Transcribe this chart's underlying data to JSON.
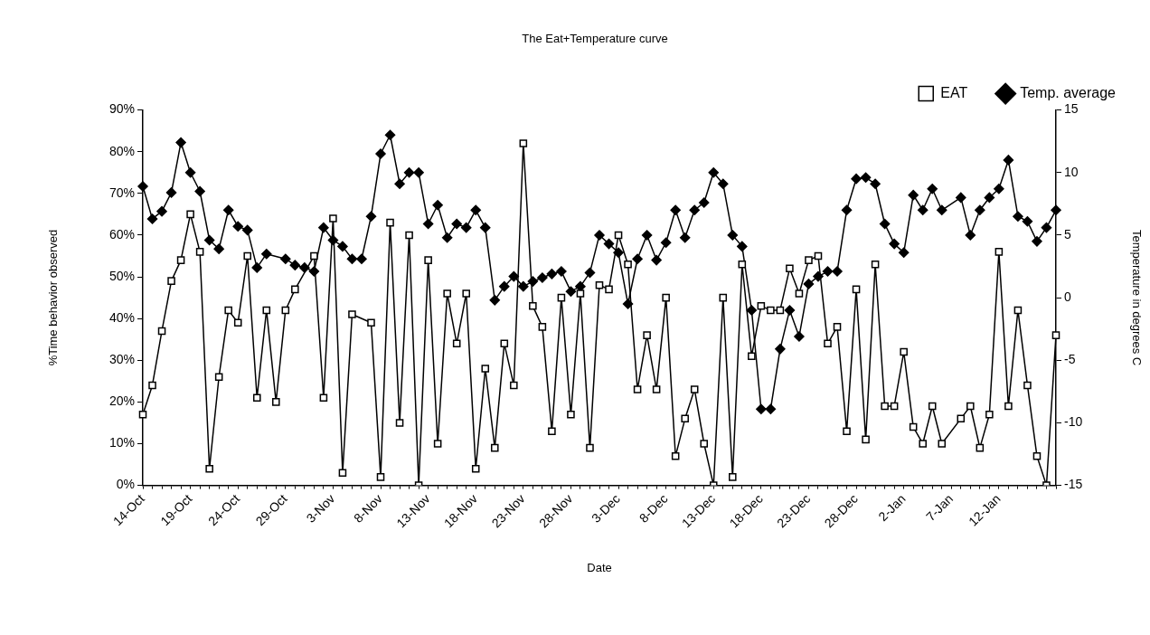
{
  "chart_data": {
    "type": "line",
    "title": "The Eat+Temperature curve",
    "xlabel": "Date",
    "ylabel": "%Time behavior observed",
    "y2label": "Temperature in degrees C",
    "legend": "top right",
    "grid": false,
    "categories": [
      "14-Oct",
      null,
      null,
      null,
      null,
      "19-Oct",
      null,
      null,
      null,
      null,
      "24-Oct",
      null,
      null,
      null,
      null,
      "29-Oct",
      null,
      null,
      null,
      null,
      "3-Nov",
      null,
      null,
      null,
      null,
      "8-Nov",
      null,
      null,
      null,
      null,
      "13-Nov",
      null,
      null,
      null,
      null,
      "18-Nov",
      null,
      null,
      null,
      null,
      "23-Nov",
      null,
      null,
      null,
      null,
      "28-Nov",
      null,
      null,
      null,
      null,
      "3-Dec",
      null,
      null,
      null,
      null,
      "8-Dec",
      null,
      null,
      null,
      null,
      "13-Dec",
      null,
      null,
      null,
      null,
      "18-Dec",
      null,
      null,
      null,
      null,
      "23-Dec",
      null,
      null,
      null,
      null,
      "28-Dec",
      null,
      null,
      null,
      null,
      "2-Jan",
      null,
      null,
      null,
      null,
      "7-Jan",
      null,
      null,
      null,
      null,
      "12-Jan",
      null,
      null,
      null,
      null,
      null,
      null
    ],
    "ylim": [
      0,
      90
    ],
    "yticks": [
      {
        "value": 0,
        "label": "0%"
      },
      {
        "value": 10,
        "label": "10%"
      },
      {
        "value": 20,
        "label": "20%"
      },
      {
        "value": 30,
        "label": "30%"
      },
      {
        "value": 40,
        "label": "40%"
      },
      {
        "value": 50,
        "label": "50%"
      },
      {
        "value": 60,
        "label": "60%"
      },
      {
        "value": 70,
        "label": "70%"
      },
      {
        "value": 80,
        "label": "80%"
      },
      {
        "value": 90,
        "label": "90%"
      }
    ],
    "y2lim": [
      -15,
      15
    ],
    "y2ticks": [
      -15,
      -10,
      -5,
      0,
      5,
      10,
      15
    ],
    "series": [
      {
        "name": "EAT",
        "color": "#000000",
        "marker": "square",
        "values": [
          17,
          24,
          37,
          49,
          54,
          65,
          56,
          4,
          26,
          42,
          39,
          55,
          21,
          42,
          20,
          42,
          47,
          null,
          55,
          21,
          64,
          3,
          41,
          null,
          39,
          2,
          63,
          15,
          60,
          0,
          54,
          10,
          46,
          34,
          46,
          4,
          28,
          9,
          34,
          24,
          82,
          43,
          38,
          13,
          45,
          17,
          46,
          9,
          48,
          47,
          60,
          53,
          23,
          36,
          23,
          45,
          7,
          16,
          23,
          10,
          0,
          45,
          2,
          53,
          31,
          43,
          42,
          42,
          52,
          46,
          54,
          55,
          34,
          38,
          13,
          47,
          11,
          53,
          19,
          19,
          32,
          14,
          10,
          19,
          10,
          null,
          16,
          19,
          9,
          17,
          56,
          19,
          42,
          24,
          7,
          0,
          36
        ]
      },
      {
        "name": "Temp. average",
        "color": "#000000",
        "marker": "diamond",
        "axis": "y2",
        "values": [
          8.9,
          6.3,
          6.9,
          8.4,
          12.4,
          10,
          8.5,
          4.6,
          3.9,
          7,
          5.7,
          5.4,
          2.4,
          3.5,
          null,
          3.1,
          2.6,
          2.4,
          2.1,
          5.6,
          4.6,
          4.1,
          3.1,
          3.1,
          6.5,
          11.5,
          13,
          9.1,
          10,
          10,
          5.9,
          7.4,
          4.8,
          5.9,
          5.6,
          7,
          5.6,
          -0.2,
          0.9,
          1.7,
          0.9,
          1.3,
          1.6,
          1.9,
          2.1,
          0.5,
          0.9,
          2,
          5,
          4.3,
          3.6,
          -0.5,
          3.1,
          5,
          3,
          4.4,
          7,
          4.8,
          7,
          7.6,
          10,
          9.1,
          5,
          4.1,
          -1,
          -8.9,
          -8.9,
          -4.1,
          -1,
          -3.1,
          1.1,
          1.7,
          2.1,
          2.1,
          7,
          9.5,
          9.6,
          9.1,
          5.9,
          4.3,
          3.6,
          8.2,
          7,
          8.7,
          7,
          null,
          8,
          5,
          7,
          8,
          8.7,
          11,
          6.5,
          6.1,
          4.5,
          5.6,
          7
        ]
      }
    ]
  }
}
